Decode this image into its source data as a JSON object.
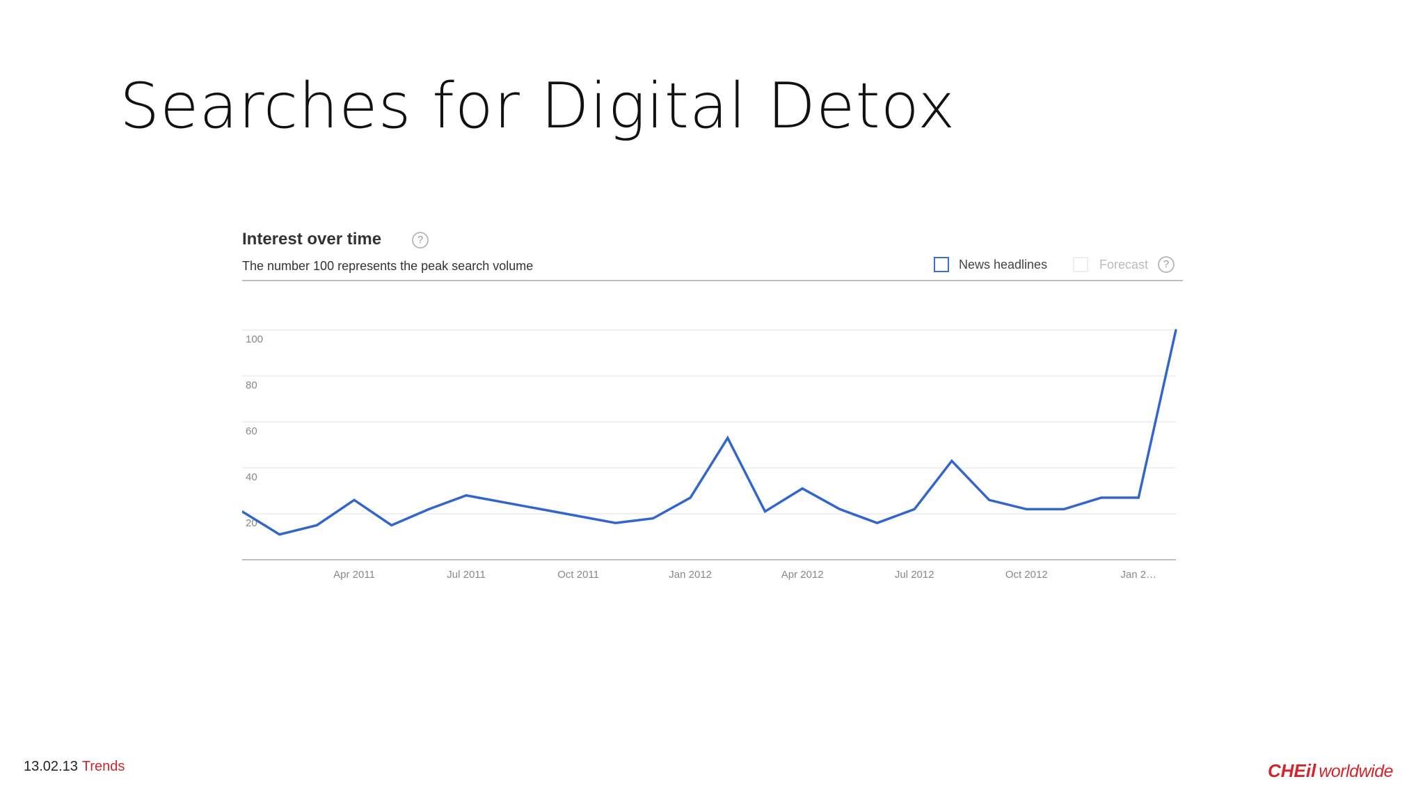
{
  "slide": {
    "title": "Searches for Digital Detox",
    "footer_date": "13.02.13",
    "footer_section": "Trends",
    "logo_brand": "CHEil",
    "logo_sub": "worldwide"
  },
  "panel": {
    "title": "Interest over time",
    "subtitle": "The number 100 represents the peak search volume",
    "legend_news": "News headlines",
    "legend_forecast": "Forecast",
    "help_glyph": "?"
  },
  "colors": {
    "line": "#3366cc",
    "grid": "#ececec",
    "axis": "#bdbdbd",
    "accent_red": "#d0262c"
  },
  "chart_data": {
    "type": "line",
    "title": "Interest over time",
    "ylim": [
      0,
      100
    ],
    "yticks": [
      20,
      40,
      60,
      80,
      100
    ],
    "x_start": "2011-01",
    "x_end": "2013-02",
    "xticks": [
      {
        "label": "Apr 2011",
        "x": "2011-04"
      },
      {
        "label": "Jul 2011",
        "x": "2011-07"
      },
      {
        "label": "Oct 2011",
        "x": "2011-10"
      },
      {
        "label": "Jan 2012",
        "x": "2012-01"
      },
      {
        "label": "Apr 2012",
        "x": "2012-04"
      },
      {
        "label": "Jul 2012",
        "x": "2012-07"
      },
      {
        "label": "Oct 2012",
        "x": "2012-10"
      },
      {
        "label": "Jan 2…",
        "x": "2013-01"
      }
    ],
    "series": [
      {
        "name": "",
        "points": [
          {
            "x": "2011-01",
            "y": 21
          },
          {
            "x": "2011-02",
            "y": 11
          },
          {
            "x": "2011-03",
            "y": 15
          },
          {
            "x": "2011-04",
            "y": 26
          },
          {
            "x": "2011-05",
            "y": 15
          },
          {
            "x": "2011-06",
            "y": 22
          },
          {
            "x": "2011-07",
            "y": 28
          },
          {
            "x": "2011-09",
            "y": 22
          },
          {
            "x": "2011-11",
            "y": 16
          },
          {
            "x": "2011-12",
            "y": 18
          },
          {
            "x": "2012-01",
            "y": 27
          },
          {
            "x": "2012-02",
            "y": 53
          },
          {
            "x": "2012-03",
            "y": 21
          },
          {
            "x": "2012-04",
            "y": 31
          },
          {
            "x": "2012-05",
            "y": 22
          },
          {
            "x": "2012-06",
            "y": 16
          },
          {
            "x": "2012-07",
            "y": 22
          },
          {
            "x": "2012-08",
            "y": 43
          },
          {
            "x": "2012-09",
            "y": 26
          },
          {
            "x": "2012-10",
            "y": 22
          },
          {
            "x": "2012-11",
            "y": 22
          },
          {
            "x": "2012-12",
            "y": 27
          },
          {
            "x": "2013-01",
            "y": 27
          },
          {
            "x": "2013-02",
            "y": 100
          }
        ]
      }
    ]
  }
}
